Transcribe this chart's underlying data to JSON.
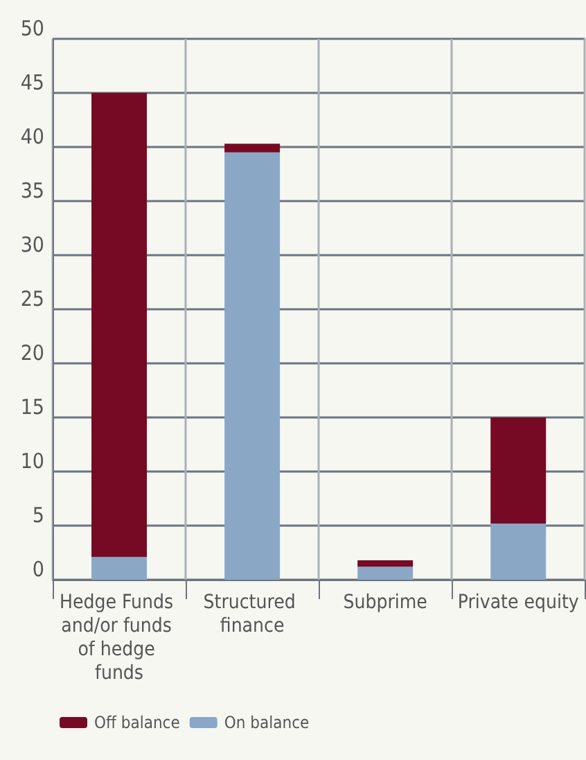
{
  "chart_data": {
    "type": "bar",
    "stacked": true,
    "categories": [
      "Hedge Funds and/or funds of hedge funds",
      "Structured finance",
      "Subprime",
      "Private equity"
    ],
    "series": [
      {
        "name": "On balance",
        "color": "#8aa8c6",
        "values": [
          2.1,
          39.5,
          1.2,
          5.2
        ]
      },
      {
        "name": "Off balance",
        "color": "#760a25",
        "values": [
          42.9,
          0.8,
          0.6,
          9.8
        ]
      }
    ],
    "ylim": [
      0,
      50
    ],
    "yticks": [
      0,
      5,
      10,
      15,
      20,
      25,
      30,
      35,
      40,
      45,
      50
    ],
    "grid": true,
    "legend": "bottom left"
  }
}
